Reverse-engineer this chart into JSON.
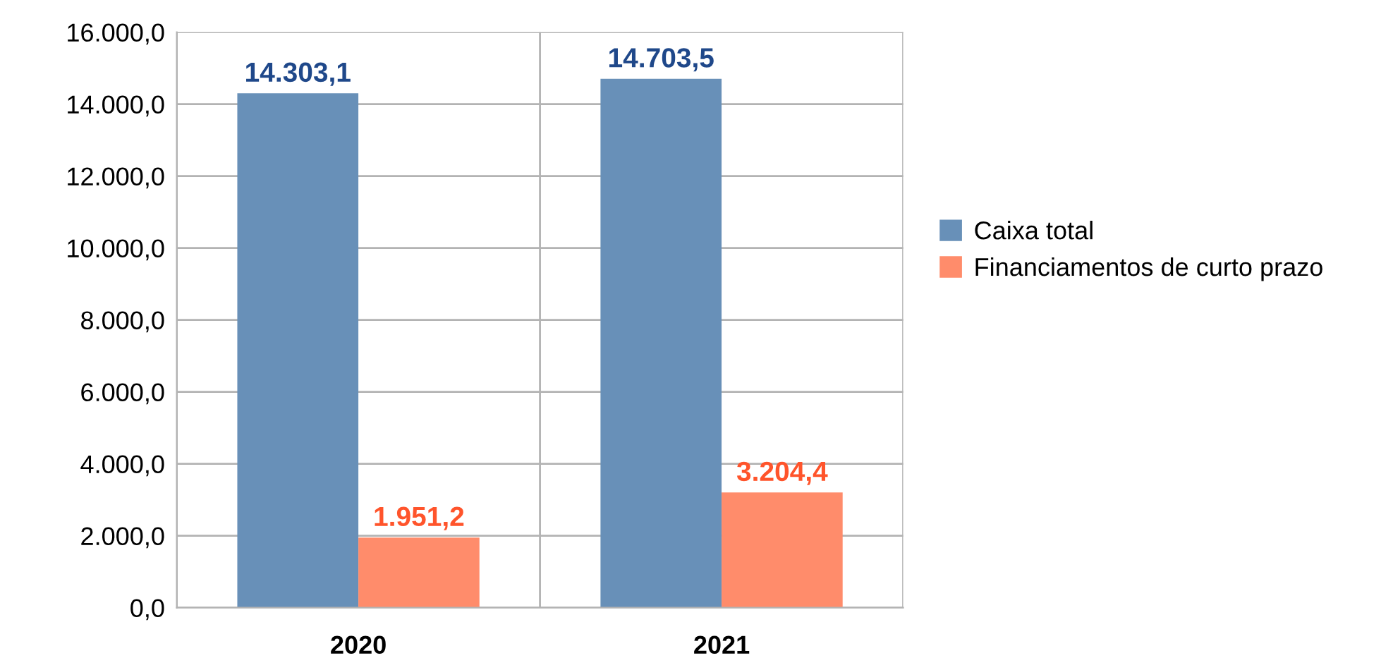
{
  "chart_data": {
    "type": "bar",
    "categories": [
      "2020",
      "2021"
    ],
    "series": [
      {
        "name": "Caixa total",
        "color": "#6890b8",
        "values": [
          14303.1,
          14703.5
        ],
        "value_labels": [
          "14.303,1",
          "14.703,5"
        ]
      },
      {
        "name": "Financiamentos de curto prazo",
        "color": "#ff8c6b",
        "values": [
          1951.2,
          3204.4
        ],
        "value_labels": [
          "1.951,2",
          "3.204,4"
        ]
      }
    ],
    "ylim": [
      0,
      16000
    ],
    "yticks": [
      {
        "value": 0,
        "label": "0,0"
      },
      {
        "value": 2000,
        "label": "2.000,0"
      },
      {
        "value": 4000,
        "label": "4.000,0"
      },
      {
        "value": 6000,
        "label": "6.000,0"
      },
      {
        "value": 8000,
        "label": "8.000,0"
      },
      {
        "value": 10000,
        "label": "10.000,0"
      },
      {
        "value": 12000,
        "label": "12.000,0"
      },
      {
        "value": 14000,
        "label": "14.000,0"
      },
      {
        "value": 16000,
        "label": "16.000,0"
      }
    ],
    "grid": true,
    "legend": "right"
  }
}
